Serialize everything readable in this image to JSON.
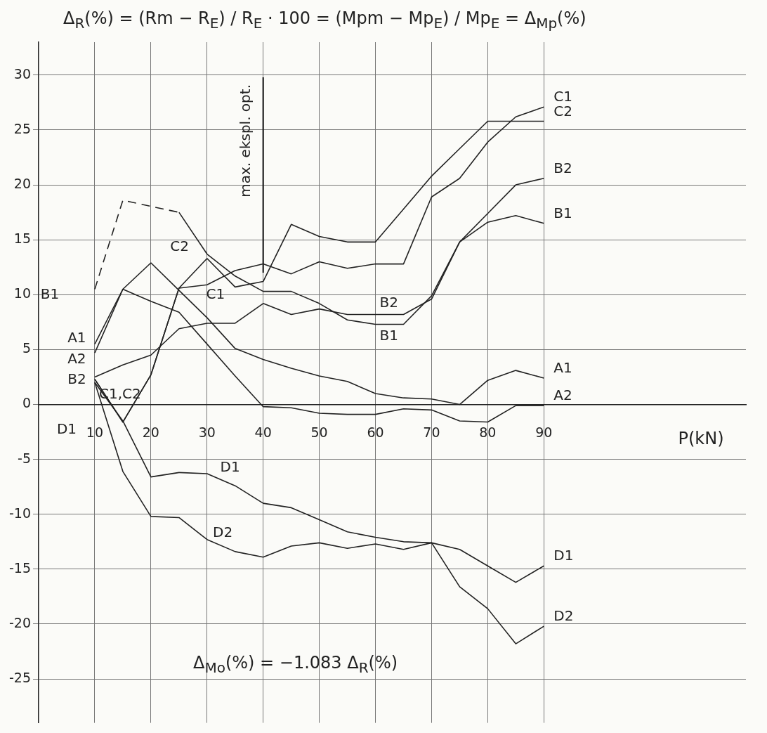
{
  "chart_data": {
    "type": "line",
    "ylabel": "Δ$_{R}$(%) = (Rm − R$_{E}$) / R$_{E}$ · 100 = (Mpm − Mp$_{E}$) / Mp$_{E}$ = Δ$_{Mp}$(%)",
    "xlabel": "P(kN)",
    "x": [
      10,
      15,
      20,
      25,
      30,
      35,
      40,
      45,
      50,
      55,
      60,
      65,
      70,
      75,
      80,
      85,
      90
    ],
    "series": [
      {
        "name": "C1",
        "color": "#222222",
        "values": [
          2.3,
          -1.6,
          2.7,
          10.6,
          10.9,
          12.2,
          12.8,
          11.9,
          13.0,
          12.4,
          12.8,
          12.8,
          18.9,
          20.6,
          23.9,
          26.2,
          27.1
        ]
      },
      {
        "name": "C2",
        "color": "#222222",
        "values": [
          2.3,
          -1.6,
          2.7,
          10.6,
          13.3,
          10.7,
          11.2,
          16.4,
          15.3,
          14.8,
          14.8,
          17.8,
          20.8,
          23.3,
          25.8,
          25.8,
          25.8
        ]
      },
      {
        "name": "B2",
        "color": "#222222",
        "values": [
          2.5,
          3.6,
          4.5,
          6.9,
          7.4,
          7.4,
          9.2,
          8.2,
          8.7,
          8.2,
          8.2,
          8.2,
          9.6,
          14.8,
          17.4,
          20.0,
          20.6
        ]
      },
      {
        "name": "B1",
        "color": "#222222",
        "values": [
          null,
          null,
          null,
          17.5,
          13.7,
          11.7,
          10.3,
          10.3,
          9.2,
          7.7,
          7.3,
          7.3,
          9.9,
          14.8,
          16.6,
          17.2,
          16.5
        ]
      },
      {
        "color": "#222222",
        "x": [
          10,
          15,
          25
        ],
        "values": [
          10.5,
          18.6,
          17.5
        ],
        "line_style": "dashed"
      },
      {
        "name": "A1",
        "color": "#222222",
        "values": [
          5.5,
          10.5,
          12.9,
          10.4,
          7.9,
          5.1,
          4.1,
          3.3,
          2.6,
          2.1,
          1.0,
          0.6,
          0.5,
          0.0,
          2.2,
          3.1,
          2.4
        ]
      },
      {
        "name": "A2",
        "color": "#222222",
        "values": [
          4.7,
          10.5,
          9.4,
          8.4,
          5.5,
          2.6,
          -0.2,
          -0.3,
          -0.8,
          -0.9,
          -0.9,
          -0.4,
          -0.5,
          -1.5,
          -1.6,
          -0.1,
          -0.1
        ]
      },
      {
        "name": "D1",
        "color": "#222222",
        "values": [
          2.0,
          -1.5,
          -6.6,
          -6.2,
          -6.3,
          -7.4,
          -9.0,
          -9.4,
          -10.5,
          -11.6,
          -12.1,
          -12.5,
          -12.6,
          -13.2,
          -14.7,
          -16.2,
          -14.7
        ]
      },
      {
        "name": "D2",
        "color": "#222222",
        "values": [
          2.0,
          -6.1,
          -10.2,
          -10.3,
          -12.3,
          -13.4,
          -13.9,
          -12.9,
          -12.6,
          -13.1,
          -12.7,
          -13.2,
          -12.6,
          -16.6,
          -18.6,
          -21.8,
          -20.2
        ]
      }
    ],
    "xlim": [
      0,
      126
    ],
    "xticks": [
      10,
      20,
      30,
      40,
      50,
      60,
      70,
      80,
      90
    ],
    "ylim": [
      -29,
      33
    ],
    "yticks": [
      -25,
      -20,
      -15,
      -10,
      -5,
      0,
      5,
      10,
      15,
      20,
      25,
      30
    ],
    "grid": true,
    "marker": "none",
    "line_style": "solid",
    "ref_lines": [
      {
        "axis": "x",
        "value": 40,
        "label": "max. ekspl. opt."
      }
    ],
    "annotations": [
      "B1",
      "A1",
      "A2",
      "B2",
      "C1,C2",
      "D1",
      "C2",
      "C1",
      "D1",
      "D2",
      "B2",
      "B1",
      "Δ$_{Mo}$(%) = −1.083 Δ$_{R}$(%)"
    ]
  }
}
